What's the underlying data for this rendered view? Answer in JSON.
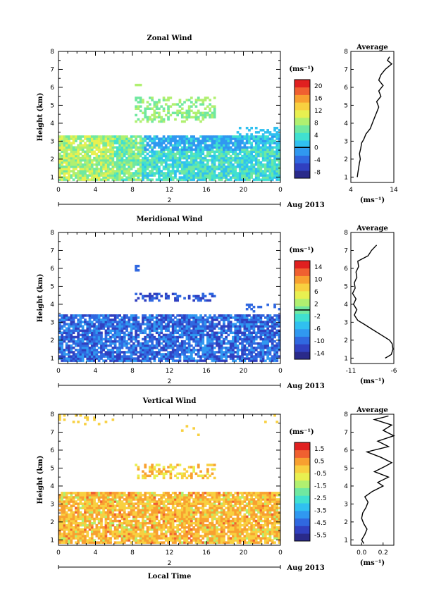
{
  "chart_data": [
    {
      "type": "heatmap",
      "title": "Zonal Wind",
      "ylabel": "Height (km)",
      "xlabel": "",
      "x_ticks": [
        "0",
        "4",
        "8",
        "12",
        "16",
        "20",
        "0"
      ],
      "y_ticks": [
        "1",
        "2",
        "3",
        "4",
        "5",
        "6",
        "7",
        "8"
      ],
      "ylim": [
        0.7,
        8.0
      ],
      "xlim": [
        0,
        24
      ],
      "date_marker": "2",
      "date_label": "Aug 2013",
      "colorbar": {
        "unit": "(ms⁻¹)",
        "ticks": [
          "20",
          "16",
          "12",
          "8",
          "4",
          "0",
          "-4",
          "-8"
        ],
        "range": [
          -10,
          22
        ],
        "zero_line": 0,
        "colors": [
          "#2a2a8a",
          "#3040c0",
          "#3068e0",
          "#3098f0",
          "#30c0f0",
          "#40e0d0",
          "#70e8a0",
          "#b0f070",
          "#e8f050",
          "#f8d040",
          "#f8a030",
          "#f06030",
          "#e02020"
        ]
      },
      "profile": {
        "title": "Average",
        "xlabel": "(ms⁻¹)",
        "x_ticks": [
          "4",
          "14"
        ],
        "xlim": [
          4,
          14
        ],
        "heights": [
          1.0,
          1.2,
          1.5,
          1.8,
          2.0,
          2.3,
          2.6,
          2.9,
          3.1,
          3.4,
          3.7,
          4.0,
          4.3,
          4.6,
          4.9,
          5.2,
          5.5,
          5.8,
          6.1,
          6.4,
          6.7,
          7.0,
          7.3,
          7.5,
          7.7
        ],
        "values": [
          5.5,
          5.6,
          5.8,
          6.0,
          6.2,
          6.0,
          6.3,
          6.5,
          7.0,
          7.5,
          8.5,
          9.0,
          9.5,
          10.0,
          10.5,
          10.0,
          11.0,
          10.5,
          11.5,
          10.5,
          11.0,
          12.0,
          13.5,
          12.5,
          13.0
        ]
      }
    },
    {
      "type": "heatmap",
      "title": "Meridional Wind",
      "ylabel": "Height (km)",
      "xlabel": "",
      "x_ticks": [
        "0",
        "4",
        "8",
        "12",
        "16",
        "20",
        "0"
      ],
      "y_ticks": [
        "1",
        "2",
        "3",
        "4",
        "5",
        "6",
        "7",
        "8"
      ],
      "ylim": [
        0.7,
        8.0
      ],
      "xlim": [
        0,
        24
      ],
      "date_marker": "2",
      "date_label": "Aug 2013",
      "colorbar": {
        "unit": "(ms⁻¹)",
        "ticks": [
          "14",
          "10",
          "6",
          "2",
          "-2",
          "-6",
          "-10",
          "-14"
        ],
        "range": [
          -16,
          16
        ],
        "zero_line": 0,
        "colors": [
          "#2a2a8a",
          "#3040c0",
          "#3068e0",
          "#3098f0",
          "#30c0f0",
          "#40e0d0",
          "#70e8a0",
          "#b0f070",
          "#e8f050",
          "#f8d040",
          "#f8a030",
          "#f06030",
          "#e02020"
        ]
      },
      "profile": {
        "title": "Average",
        "xlabel": "(ms⁻¹)",
        "x_ticks": [
          "-11",
          "-6"
        ],
        "xlim": [
          -11,
          -6
        ],
        "heights": [
          1.0,
          1.2,
          1.5,
          1.8,
          2.0,
          2.3,
          2.6,
          2.9,
          3.1,
          3.4,
          3.7,
          4.0,
          4.3,
          4.6,
          4.9,
          5.2,
          5.5,
          5.8,
          6.1,
          6.4,
          6.7,
          7.0,
          7.3
        ],
        "values": [
          -7.0,
          -6.3,
          -6.1,
          -6.2,
          -6.5,
          -7.5,
          -8.5,
          -9.5,
          -10.2,
          -10.6,
          -10.3,
          -10.7,
          -10.4,
          -10.8,
          -10.5,
          -10.6,
          -10.3,
          -10.4,
          -10.1,
          -10.2,
          -9.0,
          -8.6,
          -8.0
        ]
      }
    },
    {
      "type": "heatmap",
      "title": "Vertical Wind",
      "ylabel": "Height (km)",
      "xlabel": "Local Time",
      "x_ticks": [
        "0",
        "4",
        "8",
        "12",
        "16",
        "20",
        "0"
      ],
      "y_ticks": [
        "1",
        "2",
        "3",
        "4",
        "5",
        "6",
        "7",
        "8"
      ],
      "ylim": [
        0.7,
        8.0
      ],
      "xlim": [
        0,
        24
      ],
      "date_marker": "2",
      "date_label": "Aug 2013",
      "colorbar": {
        "unit": "(ms⁻¹)",
        "ticks": [
          "1.5",
          "0.5",
          "-0.5",
          "-1.5",
          "-2.5",
          "-3.5",
          "-4.5",
          "-5.5"
        ],
        "range": [
          -6,
          2
        ],
        "zero_line": null,
        "colors": [
          "#2a2a8a",
          "#3040c0",
          "#3068e0",
          "#3098f0",
          "#30c0f0",
          "#40e0d0",
          "#70e8a0",
          "#b0f070",
          "#e8f050",
          "#f8d040",
          "#f8a030",
          "#f06030",
          "#e02020"
        ]
      },
      "profile": {
        "title": "Average",
        "xlabel": "(ms⁻¹)",
        "x_ticks": [
          "0.0",
          "0.2"
        ],
        "xlim": [
          -0.1,
          0.3
        ],
        "heights": [
          0.8,
          1.0,
          1.3,
          1.6,
          1.9,
          2.2,
          2.5,
          2.8,
          3.1,
          3.4,
          3.7,
          4.0,
          4.2,
          4.5,
          4.8,
          5.1,
          5.3,
          5.6,
          5.9,
          6.2,
          6.5,
          6.8,
          7.1,
          7.4,
          7.7,
          7.9
        ],
        "values": [
          0.02,
          0.0,
          0.03,
          0.05,
          0.02,
          0.0,
          0.01,
          0.04,
          0.06,
          0.03,
          0.1,
          0.2,
          0.15,
          0.25,
          0.12,
          0.22,
          0.28,
          0.18,
          0.05,
          0.25,
          0.15,
          0.3,
          0.2,
          0.28,
          0.12,
          0.25
        ]
      }
    }
  ]
}
